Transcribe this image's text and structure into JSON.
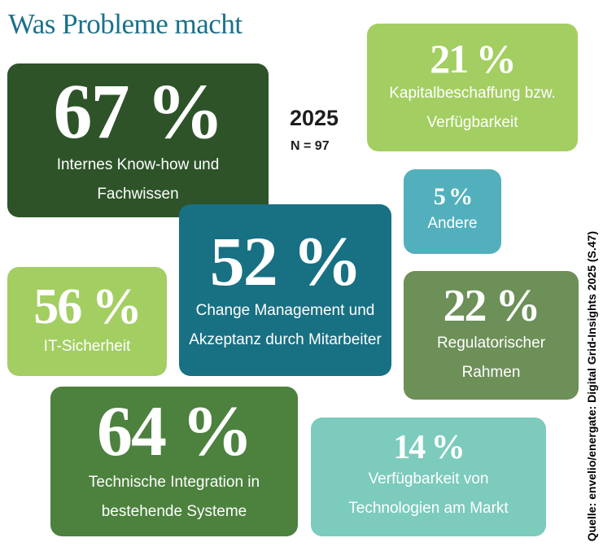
{
  "title": "Was Probleme macht",
  "year": "2025",
  "sample": "N = 97",
  "source": "Quelle: envelio/energate: Digital Grid-Insights 2025 (S.47)",
  "chart_data": {
    "type": "table",
    "title": "Was Probleme macht",
    "unit": "%",
    "items": [
      {
        "value": 67,
        "label": "Internes Know-how und Fachwissen",
        "color": "#2e5329"
      },
      {
        "value": 21,
        "label": "Kapitalbeschaffung bzw. Verfügbarkeit",
        "color": "#a3ce62"
      },
      {
        "value": 5,
        "label": "Andere",
        "color": "#52b0bd"
      },
      {
        "value": 52,
        "label": "Change Management und Akzeptanz durch Mitarbeiter",
        "color": "#187083"
      },
      {
        "value": 56,
        "label": "IT-Sicherheit",
        "color": "#a3ce62"
      },
      {
        "value": 22,
        "label": "Regulatorischer Rahmen",
        "color": "#6d8f58"
      },
      {
        "value": 64,
        "label": "Technische Integration in bestehende Systeme",
        "color": "#4c813e"
      },
      {
        "value": 14,
        "label": "Verfügbarkeit von Technologien am Markt",
        "color": "#7ccbbd"
      }
    ]
  }
}
